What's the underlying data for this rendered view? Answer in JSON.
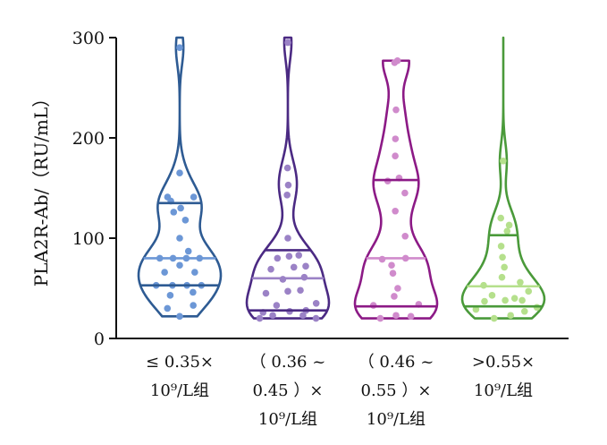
{
  "chart_data": {
    "type": "violin",
    "ylabel": "PLA2R-Ab/（RU/mL）",
    "ylim": [
      0,
      300
    ],
    "yticks": [
      0,
      100,
      200,
      300
    ],
    "grid": false,
    "categories": [
      {
        "lines": [
          "≤ 0.35×",
          "10⁹/L组"
        ]
      },
      {
        "lines": [
          "（ 0.36 ~",
          "0.45 ）×",
          "10⁹/L组"
        ]
      },
      {
        "lines": [
          "（ 0.46 ~",
          "0.55 ）×",
          "10⁹/L组"
        ]
      },
      {
        "lines": [
          ">0.55×",
          "10⁹/L组"
        ]
      }
    ],
    "series": [
      {
        "color": "#2e5b93",
        "point_color": "#6c97d6",
        "median": 80,
        "q1": 53,
        "q3": 135,
        "min": 22,
        "max": 300,
        "points": [
          {
            "v": 22,
            "o": 0
          },
          {
            "v": 30,
            "o": -0.55
          },
          {
            "v": 33,
            "o": 0.55
          },
          {
            "v": 43,
            "o": -0.3
          },
          {
            "v": 46,
            "o": 0.4
          },
          {
            "v": 53,
            "o": -0.65
          },
          {
            "v": 53,
            "o": -0.2
          },
          {
            "v": 53,
            "o": 0.2
          },
          {
            "v": 53,
            "o": 0.6
          },
          {
            "v": 66,
            "o": -0.4
          },
          {
            "v": 66,
            "o": 0.4
          },
          {
            "v": 73,
            "o": 0
          },
          {
            "v": 80,
            "o": -0.6
          },
          {
            "v": 80,
            "o": -0.2
          },
          {
            "v": 80,
            "o": 0.2
          },
          {
            "v": 80,
            "o": 0.6
          },
          {
            "v": 87,
            "o": 0.3
          },
          {
            "v": 100,
            "o": 0
          },
          {
            "v": 118,
            "o": 0.3
          },
          {
            "v": 126,
            "o": -0.3
          },
          {
            "v": 130,
            "o": 0.05
          },
          {
            "v": 137,
            "o": -0.45
          },
          {
            "v": 141,
            "o": -0.65
          },
          {
            "v": 141,
            "o": 0.75
          },
          {
            "v": 165,
            "o": 0
          },
          {
            "v": 290,
            "o": 0
          }
        ]
      },
      {
        "color": "#4b2a83",
        "point_color": "#9b82c6",
        "median": 60,
        "q1": 28,
        "q3": 88,
        "min": 20,
        "max": 300,
        "points": [
          {
            "v": 20,
            "o": -0.9
          },
          {
            "v": 20,
            "o": 0.9
          },
          {
            "v": 23,
            "o": -0.45
          },
          {
            "v": 23,
            "o": 0.45
          },
          {
            "v": 26,
            "o": -0.7
          },
          {
            "v": 27,
            "o": 0.05
          },
          {
            "v": 28,
            "o": 0.5
          },
          {
            "v": 33,
            "o": -0.3
          },
          {
            "v": 35,
            "o": 0.75
          },
          {
            "v": 45,
            "o": -0.6
          },
          {
            "v": 47,
            "o": 0
          },
          {
            "v": 48,
            "o": 0.35
          },
          {
            "v": 59,
            "o": -0.15
          },
          {
            "v": 61,
            "o": 0.5
          },
          {
            "v": 69,
            "o": -0.55
          },
          {
            "v": 71,
            "o": 0.2
          },
          {
            "v": 72,
            "o": 0.6
          },
          {
            "v": 80,
            "o": -0.4
          },
          {
            "v": 82,
            "o": 0.05
          },
          {
            "v": 83,
            "o": 0.45
          },
          {
            "v": 100,
            "o": 0
          },
          {
            "v": 143,
            "o": -0.1
          },
          {
            "v": 153,
            "o": 0.05
          },
          {
            "v": 170,
            "o": -0.05
          },
          {
            "v": 295,
            "o": 0
          }
        ]
      },
      {
        "color": "#8c1a86",
        "point_color": "#d08bcc",
        "median": 80,
        "q1": 32,
        "q3": 158,
        "min": 20,
        "max": 277,
        "points": [
          {
            "v": 20,
            "o": -0.5
          },
          {
            "v": 22,
            "o": 0.45
          },
          {
            "v": 23,
            "o": 0
          },
          {
            "v": 33,
            "o": -0.6
          },
          {
            "v": 34,
            "o": 0.6
          },
          {
            "v": 42,
            "o": -0.05
          },
          {
            "v": 50,
            "o": 0.05
          },
          {
            "v": 65,
            "o": -0.1
          },
          {
            "v": 73,
            "o": -0.15
          },
          {
            "v": 79,
            "o": -0.5
          },
          {
            "v": 80,
            "o": 0.35
          },
          {
            "v": 102,
            "o": 0.55
          },
          {
            "v": 127,
            "o": -0.05
          },
          {
            "v": 145,
            "o": 0.45
          },
          {
            "v": 157,
            "o": -0.4
          },
          {
            "v": 160,
            "o": 0.15
          },
          {
            "v": 182,
            "o": -0.05
          },
          {
            "v": 199,
            "o": -0.05
          },
          {
            "v": 228,
            "o": 0
          },
          {
            "v": 275,
            "o": -0.12
          },
          {
            "v": 277,
            "o": 0.12
          }
        ]
      },
      {
        "color": "#4a9a3a",
        "point_color": "#b5e08c",
        "median": 52,
        "q1": 32,
        "q3": 103,
        "min": 20,
        "max": 300,
        "points": [
          {
            "v": 20,
            "o": -0.35
          },
          {
            "v": 23,
            "o": 0.25
          },
          {
            "v": 27,
            "o": 0.65
          },
          {
            "v": 29,
            "o": -0.8
          },
          {
            "v": 31,
            "o": 0.95
          },
          {
            "v": 37,
            "o": -0.5
          },
          {
            "v": 38,
            "o": 0.05
          },
          {
            "v": 38,
            "o": 0.5
          },
          {
            "v": 40,
            "o": 0.3
          },
          {
            "v": 43,
            "o": -0.3
          },
          {
            "v": 47,
            "o": 0.7
          },
          {
            "v": 53,
            "o": -0.6
          },
          {
            "v": 56,
            "o": 0.55
          },
          {
            "v": 61,
            "o": -0.05
          },
          {
            "v": 71,
            "o": 0.05
          },
          {
            "v": 81,
            "o": -0.05
          },
          {
            "v": 92,
            "o": -0.15
          },
          {
            "v": 107,
            "o": 0.3
          },
          {
            "v": 113,
            "o": 0.5
          },
          {
            "v": 120,
            "o": -0.25
          },
          {
            "v": 177,
            "o": -0.05
          }
        ]
      }
    ]
  }
}
